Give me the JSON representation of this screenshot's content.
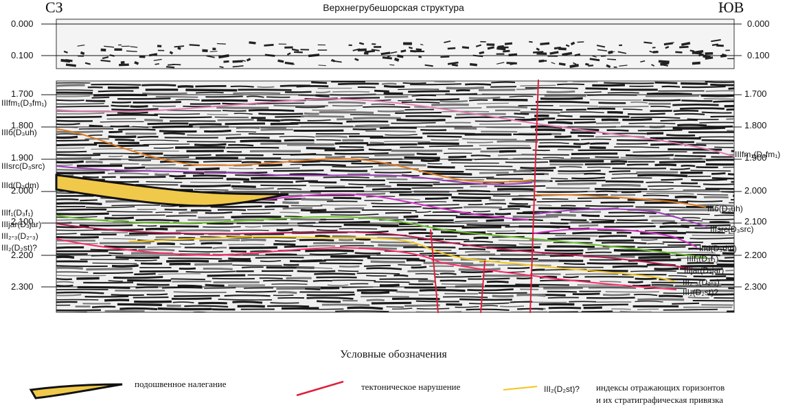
{
  "title": "Верхнегрубешорская структура",
  "side_labels": {
    "left": "СЗ",
    "right": "ЮВ"
  },
  "time_ticks_top": [
    "0.000",
    "0.100"
  ],
  "time_ticks_main": [
    "1.700",
    "1.800",
    "1.900",
    "2.000",
    "2.100",
    "2.200",
    "2.300"
  ],
  "horizons_left": [
    "IIIfm₁(D₃fm₁)",
    "IIIб(D₃uh)",
    "IIIsrc(D₃src)",
    "IIId(D₃dm)",
    "IIIf₁(D₃f₁)",
    "IIIjar(D₃jar)",
    "III₂-₃(D₂-₃)",
    "III₂(D₂st)?"
  ],
  "horizons_right": [
    "IIIfm₁(D₃fm₁)",
    "IIIб(D₃uh)",
    "IIIsrc(D₃src)",
    "IIId(D₃dm)",
    "IIIf₁(D₃f₁)",
    "IIIjar(D₃jar)",
    "III₂-₃(D₂-₃)",
    "III₂(D₂st)?"
  ],
  "horizon_colors": {
    "fm1": "#e07ab0",
    "uh": "#e07a1e",
    "src": "#9b3bb5",
    "dm": "#d42fc8",
    "f1": "#6abf2e",
    "jar": "#b5174d",
    "d23": "#f2c518",
    "d2st": "#ff2a6a",
    "fault": "#e01e3c",
    "wedge_fill": "#f0c94a"
  },
  "legend": {
    "title": "Условные обозначения",
    "onlap_label": "подошвенное налегание",
    "fault_label": "тектоническое нарушение",
    "index_sample": "III₂(D₂st)?",
    "index_label_1": "индексы отражающих горизонтов",
    "index_label_2": "и их стратиграфическая привязка"
  }
}
